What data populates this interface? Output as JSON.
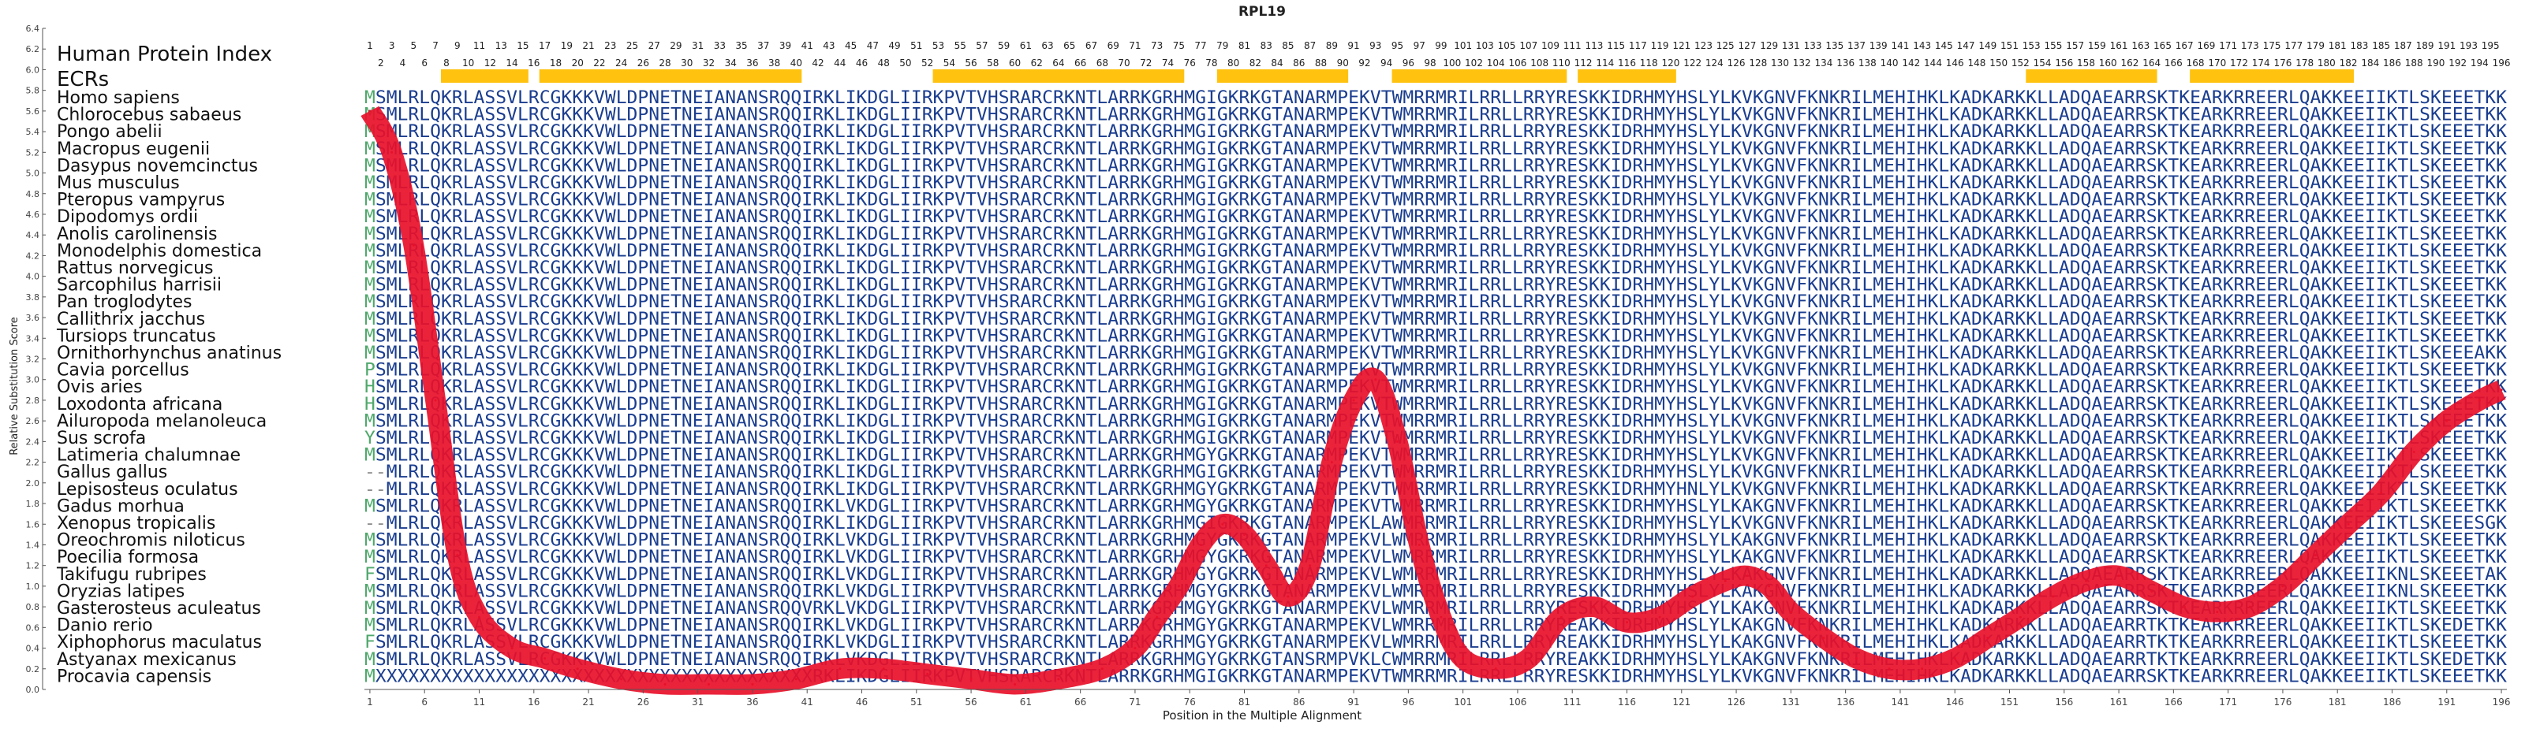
{
  "chart_data": {
    "type": "line",
    "title": "RPL19",
    "xlabel": "Position in the Multiple Alignment",
    "ylabel": "Relative Substitution Score",
    "xlim": [
      1,
      196
    ],
    "ylim": [
      0.0,
      6.4
    ],
    "y_ticks": [
      "0.0",
      "0.2",
      "0.4",
      "0.6",
      "0.8",
      "1.0",
      "1.2",
      "1.4",
      "1.6",
      "1.8",
      "2.0",
      "2.2",
      "2.4",
      "2.6",
      "2.8",
      "3.0",
      "3.2",
      "3.4",
      "3.6",
      "3.8",
      "4.0",
      "4.2",
      "4.4",
      "4.6",
      "4.8",
      "5.0",
      "5.2",
      "5.4",
      "5.6",
      "5.8",
      "6.0",
      "6.2",
      "6.4"
    ],
    "x_ticks": [
      1,
      6,
      11,
      16,
      21,
      26,
      31,
      36,
      41,
      46,
      51,
      56,
      61,
      66,
      71,
      76,
      81,
      86,
      91,
      96,
      101,
      106,
      111,
      116,
      121,
      126,
      131,
      136,
      141,
      146,
      151,
      156,
      161,
      166,
      171,
      176,
      181,
      186,
      191,
      196
    ],
    "human_index_label": "Human Protein Index",
    "ecr_label": "ECRs",
    "ecr_regions": [
      [
        8,
        15
      ],
      [
        17,
        40
      ],
      [
        53,
        75
      ],
      [
        79,
        90
      ],
      [
        95,
        110
      ],
      [
        112,
        120
      ],
      [
        153,
        164
      ],
      [
        168,
        182
      ]
    ],
    "series": [
      {
        "color": "#e8102a",
        "x": [
          1,
          3,
          5,
          7,
          9,
          11,
          14,
          17,
          20,
          24,
          28,
          32,
          36,
          40,
          44,
          48,
          52,
          56,
          60,
          64,
          68,
          71,
          73,
          75,
          77,
          79,
          81,
          83,
          85,
          87,
          89,
          91,
          93,
          95,
          97,
          99,
          101,
          104,
          107,
          110,
          113,
          116,
          119,
          122,
          125,
          127,
          129,
          131,
          134,
          137,
          140,
          143,
          146,
          149,
          152,
          155,
          158,
          161,
          164,
          167,
          170,
          173,
          176,
          179,
          182,
          185,
          188,
          191,
          194,
          196
        ],
        "values": [
          5.6,
          5.2,
          4.3,
          2.8,
          1.3,
          0.7,
          0.4,
          0.3,
          0.2,
          0.1,
          0.05,
          0.05,
          0.05,
          0.1,
          0.2,
          0.2,
          0.15,
          0.1,
          0.05,
          0.1,
          0.2,
          0.4,
          0.7,
          1.0,
          1.4,
          1.6,
          1.5,
          1.2,
          0.9,
          1.2,
          2.2,
          2.8,
          3.0,
          2.4,
          1.4,
          0.7,
          0.3,
          0.2,
          0.3,
          0.7,
          0.8,
          0.65,
          0.7,
          0.9,
          1.05,
          1.1,
          1.0,
          0.75,
          0.5,
          0.3,
          0.2,
          0.2,
          0.3,
          0.5,
          0.7,
          0.9,
          1.05,
          1.1,
          0.95,
          0.8,
          0.75,
          0.8,
          1.0,
          1.3,
          1.6,
          1.9,
          2.3,
          2.6,
          2.8,
          2.9
        ]
      }
    ]
  },
  "alignment": {
    "sequences": [
      {
        "species": "Homo sapiens",
        "seq": "MSMLRLQKRLASSVLRCGKKKVWLDPNETNEIANANSRQQIRKLIKDGLIIRKPVTVHSRARCRKNTLARRKGRHMGIGKRKGTANARMPEKVTWMRRMRILRRLLRRYRESKKIDRHMYHSLYLKVKGNVFKNKRILMEHIHKLKADKARKKLLADQAEARRSKTKEARKRREERLQAKKEEIIKTLSKEEETKK"
      },
      {
        "species": "Chlorocebus sabaeus",
        "seq": "MSMLRLQKRLASSVLRCGKKKVWLDPNETNEIANANSRQQIRKLIKDGLIIRKPVTVHSRARCRKNTLARRKGRHMGIGKRKGTANARMPEKVTWMRRMRILRRLLRRYRESKKIDRHMYHSLYLKVKGNVFKNKRILMEHIHKLKADKARKKLLADQAEARRSKTKEARKRREERLQAKKEEIIKTLSKEEETKK"
      },
      {
        "species": "Pongo abelii",
        "seq": "MSMLRLQKRLASSVLRCGKKKVWLDPNETNEIANANSRQQIRKLIKDGLIIRKPVTVHSRARCRKNTLARRKGRHMGIGKRKGTANARMPEKVTWMRRMRILRRLLRRYRESKKIDRHMYHSLYLKVKGNVFKNKRILMEHIHKLKADKARKKLLADQAEARRSKTKEARKRREERLQAKKEEIIKTLSKEEETKK"
      },
      {
        "species": "Macropus eugenii",
        "seq": "MSMLRLQKRLASSVLRCGKKKVWLDPNETNEIANANSRQQIRKLIKDGLIIRKPVTVHSRARCRKNTLARRKGRHMGIGKRKGTANARMPEKVTWMRRMRILRRLLRRYRESKKIDRHMYHSLYLKVKGNVFKNKRILMEHIHKLKADKARKKLLADQAEARRSKTKEARKRREERLQAKKEEIIKTLSKEEETKK"
      },
      {
        "species": "Dasypus novemcinctus",
        "seq": "MSMLRLQKRLASSVLRCGKKKVWLDPNETNEIANANSRQQIRKLIKDGLIIRKPVTVHSRARCRKNTLARRKGRHMGIGKRKGTANARMPEKVTWMRRMRILRRLLRRYRESKKIDRHMYHSLYLKVKGNVFKNKRILMEHIHKLKADKARKKLLADQAEARRSKTKEARKRREERLQAKKEEIIKTLSKEEETKK"
      },
      {
        "species": "Mus musculus",
        "seq": "MSMLRLQKRLASSVLRCGKKKVWLDPNETNEIANANSRQQIRKLIKDGLIIRKPVTVHSRARCRKNTLARRKGRHMGIGKRKGTANARMPEKVTWMRRMRILRRLLRRYRESKKIDRHMYHSLYLKVKGNVFKNKRILMEHIHKLKADKARKKLLADQAEARRSKTKEARKRREERLQAKKEEIIKTLSKEEETKK"
      },
      {
        "species": "Pteropus vampyrus",
        "seq": "MSMLRLQKRLASSVLRCGKKKVWLDPNETNEIANANSRQQIRKLIKDGLIIRKPVTVHSRARCRKNTLARRKGRHMGIGKRKGTANARMPEKVTWMRRMRILRRLLRRYRESKKIDRHMYHSLYLKVKGNVFKNKRILMEHIHKLKADKARKKLLADQAEARRSKTKEARKRREERLQAKKEEIIKTLSKEEETKK"
      },
      {
        "species": "Dipodomys ordii",
        "seq": "MSMLRLQKRLASSVLRCGKKKVWLDPNETNEIANANSRQQIRKLIKDGLIIRKPVTVHSRARCRKNTLARRKGRHMGIGKRKGTANARMPEKVTWMRRMRILRRLLRRYRESKKIDRHMYHSLYLKVKGNVFKNKRILMEHIHKLKADKARKKLLADQAEARRSKTKEARKRREERLQAKKEEIIKTLSKEEETKK"
      },
      {
        "species": "Anolis carolinensis",
        "seq": "MSMLRLQKRLASSVLRCGKKKVWLDPNETNEIANANSRQQIRKLIKDGLIIRKPVTVHSRARCRKNTLARRKGRHMGIGKRKGTANARMPEKVTWMRRMRILRRLLRRYRESKKIDRHMYHSLYLKVKGNVFKNKRILMEHIHKLKADKARKKLLADQAEARRSKTKEARKRREERLQAKKEEIIKTLSKEEETKK"
      },
      {
        "species": "Monodelphis domestica",
        "seq": "MSMLRLQKRLASSVLRCGKKKVWLDPNETNEIANANSRQQIRKLIKDGLIIRKPVTVHSRARCRKNTLARRKGRHMGIGKRKGTANARMPEKVTWMRRMRILRRLLRRYRESKKIDRHMYHSLYLKVKGNVFKNKRILMEHIHKLKADKARKKLLADQAEARRSKTKEARKRREERLQAKKEEIIKTLSKEEETKK"
      },
      {
        "species": "Rattus norvegicus",
        "seq": "MSMLRLQKRLASSVLRCGKKKVWLDPNETNEIANANSRQQIRKLIKDGLIIRKPVTVHSRARCRKNTLARRKGRHMGIGKRKGTANARMPEKVTWMRRMRILRRLLRRYRESKKIDRHMYHSLYLKVKGNVFKNKRILMEHIHKLKADKARKKLLADQAEARRSKTKEARKRREERLQAKKEEIIKTLSKEEETKK"
      },
      {
        "species": "Sarcophilus harrisii",
        "seq": "MSMLRLQKRLASSVLRCGKKKVWLDPNETNEIANANSRQQIRKLIKDGLIIRKPVTVHSRARCRKNTLARRKGRHMGIGKRKGTANARMPEKVTWMRRMRILRRLLRRYRESKKIDRHMYHSLYLKVKGNVFKNKRILMEHIHKLKADKARKKLLADQAEARRSKTKEARKRREERLQAKKEEIIKTLSKEEETKK"
      },
      {
        "species": "Pan troglodytes",
        "seq": "MSMLRLQKRLASSVLRCGKKKVWLDPNETNEIANANSRQQIRKLIKDGLIIRKPVTVHSRARCRKNTLARRKGRHMGIGKRKGTANARMPEKVTWMRRMRILRRLLRRYRESKKIDRHMYHSLYLKVKGNVFKNKRILMEHIHKLKADKARKKLLADQAEARRSKTKEARKRREERLQAKKEEIIKTLSKEEETKK"
      },
      {
        "species": "Callithrix jacchus",
        "seq": "MSMLRLQKRLASSVLRCGKKKVWLDPNETNEIANANSRQQIRKLIKDGLIIRKPVTVHSRARCRKNTLARRKGRHMGIGKRKGTANARMPEKVTWMRRMRILRRLLRRYRESKKIDRHMYHSLYLKVKGNVFKNKRILMEHIHKLKADKARKKLLADQAEARRSKTKEARKRREERLQAKKEEIIKTLSKEEETKK"
      },
      {
        "species": "Tursiops truncatus",
        "seq": "MSMLRLQKRLASSVLRCGKKKVWLDPNETNEIANANSRQQIRKLIKDGLIIRKPVTVHSRARCRKNTLARRKGRHMGIGKRKGTANARMPEKVTWMRRMRILRRLLRRYRESKKIDRHMYHSLYLKVKGNVFKNKRILMEHIHKLKADKARKKLLADQAEARRSKTKEARKRREERLQAKKEEIIKTLSKEEETKK"
      },
      {
        "species": "Ornithorhynchus anatinus",
        "seq": "MSMLRLQKRLASSVLRCGKKKVWLDPNETNEIANANSRQQIRKLIKDGLIIRKPVTVHSRARCRKNTLARRKGRHMGIGKRKGTANARMPEKVTWMRRMRILRRLLRRYRESKKIDRHMYHSLYLKVKGNVFKNKRILMEHIHKLKADKARKKLLADQAEARRSKTKEARKRREERLQAKKEEIIKTLSKEEEAKK"
      },
      {
        "species": "Cavia porcellus",
        "seq": "PSMLRLQKRLASSVLRCGKKKVWLDPNETNEIANANSRQQIRKLIKDGLIIRKPVTVHSRARCRKNTLARRKGRHMGIGKRKGTANARMPEKVTWMRRMRILRRLLRRYRESKKIDRHMYHSLYLKVKGNVFKNKRILMEHIHKLKADKARKKLLADQAEARRSKTKEARKRREERLQAKKEEIIKTLSKEEETKK"
      },
      {
        "species": "Ovis aries",
        "seq": "HSMLRLQKRLASSVLRCGKKKVWLDPNETNEIANANSRQQIRKLIKDGLIIRKPVTVHSRARCRKNTLARRKGRHMGIGKRKGTANARMPEKVTWMRRMRILRRLLRRYRESKKIDRHMYHSLYLKVKGNVFKNKRILMEHIHKLKADKARKKLLADQAEARRSKTKEARKRREERLQAKKEEIIKTLSKEEETKK"
      },
      {
        "species": "Loxodonta africana",
        "seq": "HSMLRLQKRLASSVLRCGKKKVWLDPNETNEIANANSRQQIRKLIKDGLIIRKPVTVHSRARCRKNTLARRKGRHMGIGKRKGTANARMPEKVTWMRRMRILRRLLRRYRESKKIDRHMYHSLYLKVKGNVFKNKRILMEHIHKLKADKARKKLLADQAEARRSKTKEARKRREERLQAKKEEIIKTLSKEEETKK"
      },
      {
        "species": "Ailuropoda melanoleuca",
        "seq": "MSMLRLQKRLASSVLRCGKKKVWLDPNETNEIANANSRQQIRKLIKDGLIIRKPVTVHSRARCRKNTLARRKGRHMGIGKRKGTANARMPEKVTWMRRMRILRRLLRRYRESKKIDRHMYHSLYLKVKGNVFKNKRILMEHIHKLKADKARKKLLADQAEARRSKTKEARKRREERLQAKKEEIIKTLSKEEETKK"
      },
      {
        "species": "Sus scrofa",
        "seq": "YSMLRLQKRLASSVLRCGKKKVWLDPNETNEIANANSRQQIRKLIKDGLIIRKPVTVHSRARCRKNTLARRKGRHMGIGKRKGTANARMPEKVTWMRRMRILRRLLRRYRESKKIDRHMYHSLYLKVKGNVFKNKRILMEHIHKLKADKARKKLLADQAEARRSKTKEARKRREERLQAKKEEIIKTLSKEEETKK"
      },
      {
        "species": "Latimeria chalumnae",
        "seq": "MSMLRLQKRLASSVLRCGKKKVWLDPNETNEIANANSRQQIRKLIKDGLIIRKPVTVHSRARCRKNTLARRKGRHMGYGKRKGTANARMPEKVTWMRRMRILRRLLRRYRESKKIDRHMYHSLYLKVKGNVFKNKRILMEHIHKLKADKARKKLLADQAEARRSKTKEARKRREERLQAKKEEIIKTLSKEEETKK"
      },
      {
        "species": "Gallus gallus",
        "seq": "--MLRLQKRLASSVLRCGKKKVWLDPNETNEIANANSRQQIRKLIKDGLIIRKPVTVHSRARCRKNTLARRKGRHMGIGKRKGTANARMPEKVTWMRRMRILRRLLRRYRESKKIDRHMYHSLYLKVKGNVFKNKRILMEHIHKLKADKARKKLLADQAEARRSKTKEARKRREERLQAKKEEIIKTLSKEEETKK"
      },
      {
        "species": "Lepisosteus oculatus",
        "seq": "--MLRLQKRLASSVLRCGKKKVWLDPNETNEIANANSRQQIRKLIKDGLIIRKPVTVHSRARCRKNTLARRKGRHMGYGKRKGTANARMPEKVTWMRRMRILRRLLRRYRESKKIDRHMYHNLYLKVKGNVFKNKRILMEHIHKLKADKARKKLLADQAEARRSKTKEARKRREERLQAKKEEIIKTLSKEEETKK"
      },
      {
        "species": "Gadus morhua",
        "seq": "MSMLRLQKRLASSVLRCGKKKVWLDPNETNEIANANSRQQIRKLVKDGLIIRKPVTVHSRARCRKNTLARRKGRHMGYGKRKGTANARMPEKVTWMRRMRILRRLLRRYRESKKIDRHMYHSLYLKAKGNVFKNKRILMEHIHKLKADKARKKLLADQAEARRSKTKEARKRREERLQAKKEEIIKTLSKEEETKK"
      },
      {
        "species": "Xenopus tropicalis",
        "seq": "--MLRLQKRLASSVLRCGKKKVWLDPNETNEIANANSRQQIRKLIKDGLIIRKPVTVHSRARCRKNTLARRKGRHMGIGKRKGTANARMPEKLAWMRRMRILRRLLRRYRESKKIDRHMYHSLYLKVKGNVFKNKRILMEHIHKLKADKARKKLLADQAEARRSKTKEARKRREERLQAKKEEIIKTLSKEEESGK"
      },
      {
        "species": "Oreochromis niloticus",
        "seq": "MSMLRLQKRLASSVLRCGKKKVWLDPNETNEIANANSRQQIRKLVKDGLIIRKPVTVHSRARCRKNTLARRKGRHMGYGKRKGTANARMPEKVLWMRRMRILRRLLRRYRESKKIDRHMYHSLYLKAKGNVFKNKRILMEHIHKLKADKARKKLLADQAEARRSKTKEARKRREERLQAKKEEIIKTLSKEEETKK"
      },
      {
        "species": "Poecilia formosa",
        "seq": "MSMLRLQKRLASSVLRCGKKKVWLDPNETNEIANANSRQQIRKLVKDGLIIRKPVTVHSRARCRKNTLARRKGRHMGYGKRKGTANARMPEKVLWMRRMRILRRLLRRYRESKKIDRHMYHSLYLKAKGNVFKNKRILMEHIHKLKADKARKKLLADQAEARRSKTKEARKRREERLQAKKEEIIKTLSKEEETKK"
      },
      {
        "species": "Takifugu rubripes",
        "seq": "FSMLRLQKRLASSVLRCGKKKVWLDPNETNEIANANSRQQIRKLVKDGLIIRKPVTVHSRARCRKNTLARRKGRHMGYGKRKGTANARMPEKVLWMRRMRILRRLLRRYRESKKIDRHMYHSLYLKAKGNVFKNKRILMEHIHKLKADKARKKLLADQAEARRSKTKEARKRREERLQAKKEEIIKNLSKEEETAK"
      },
      {
        "species": "Oryzias latipes",
        "seq": "MSMLRLQKRLASSVLRCGKKKVWLDPNETNEIANANSRQQIRKLVKDGLIIRKPVTVHSRARCRKNTLARRKGRHMGYGKRKGTANARMPEKVLWMRRMRILRRLLRRYRESKKIDRHMYHSLYLKAKGNVFKNKRILMEHIHKLKADKARKKLLADQAEARRSKTKEARKRREERLQAKKEEIIKNLSKEEETKK"
      },
      {
        "species": "Gasterosteus aculeatus",
        "seq": "MSMLRLQKRLASSVLRCGKKKVWLDPNETNEIANANSRQQVRKLVKDGLIIRKPVTVHSRARCRKNTLARRKGRHMGYGKRKGTANARMPEKVLWMRRMRILRRLLRRYRESKKIDRHMYHSLYLKAKGNVFKNKRILMEHIHKLKADKARKKLLADQAEARRSKTKEARKRREERLQAKKEEIIKTLSKEEETKK"
      },
      {
        "species": "Danio rerio",
        "seq": "MSMLRLQKRLASSVLRCGKKKVWLDPNETNEIANANSRQQIRKLVKDGLIIRKPVTVHSRARCRKNTLARRKGRHMGYGKRKGTANARMPEKVLWMRRMRILRRLLRRYREAKKIDRHMYHSLYLKAKGNVFKNKRILMEHIHKLKADKARKKLLADQAEARRTKTKEARKRREERLQAKKEEIIKTLSKEDETKK"
      },
      {
        "species": "Xiphophorus maculatus",
        "seq": "FSMLRLQKRLASSVLRCGKKKVWLDPNETNEIANANSRQQIRKLVKDGLIIRKPVTVHSRARCRKNTLARRKGRHMGYGKRKGTANARMPEKVLWMRRMRILRRLLRRYREAKKIDRHMYHSLYLKAKGNVFKNKRILMEHIHKLKADKARKKLLADQAEARRTKTKEARKRREERLQAKKEEIIKTLSKEEETKK"
      },
      {
        "species": "Astyanax mexicanus",
        "seq": "MSMLRLQKRLASSVLRCGKKKVWLDPNETNEIANANSRQQIRKLVKDGLIIRKPVTVHSRARCRKNTLARRKGRHMGYGKRKGTANSRMPVKLCWMRRMRILRRLLRRYREAKKIDRHMYHSLYLKAKGNVFKNKRILMEHIHKLKADKARKKLLADQAEARRTKTKEARKRREERLQAKKEEIIKTLSKEDETKK"
      },
      {
        "species": "Procavia capensis",
        "seq": "MXXXXXXXXXXXXXXXXXXXXXXXXXXXXXXXXXXXXXXXXRKLIKDGLIIRKPVTVHSRARCRKNTLARRKGRHMGIGKRKGTANARMPEKVTWMRRMRILRRLLRRYRESKKIDRHMYHSLYLKVKGNVFKNKRILMEHIHKLKADKARKKLLADQAEARRSKTKEARKRREERLQAKKEEIIKTLSKEEETKK"
      }
    ],
    "colors": {
      "residue": "#1a3d8f",
      "gap": "#8a8a8a",
      "first_column": "#4fa86b",
      "ecr_bar": "#ffc20e",
      "label": "#111111",
      "axis": "#555555"
    }
  }
}
